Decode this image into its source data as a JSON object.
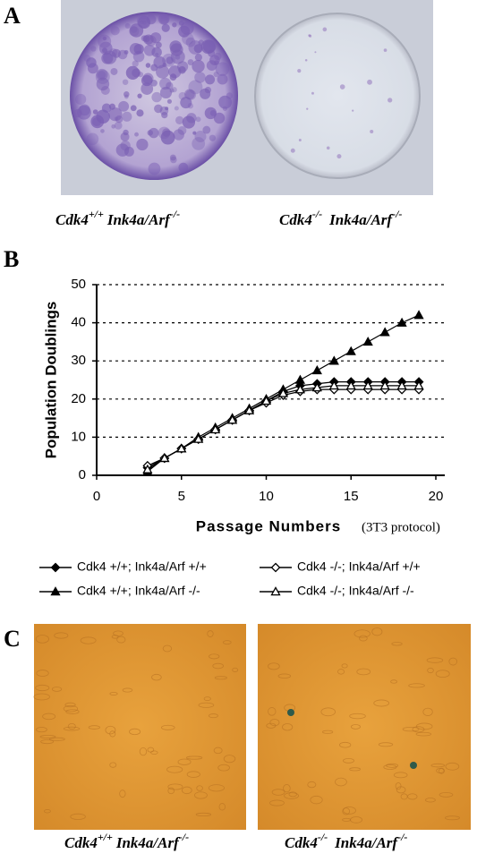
{
  "panel_a": {
    "letter": "A",
    "labels": [
      {
        "gene1": "Cdk4",
        "sup1": "+/+",
        "gene2": "Ink4a/Arf",
        "sup2": "-/-"
      },
      {
        "gene1": "Cdk4",
        "sup1": "-/-",
        "gene2": "Ink4a/Arf",
        "sup2": "-/-"
      }
    ]
  },
  "panel_b": {
    "letter": "B"
  },
  "chart_data": {
    "type": "line",
    "y_label": "Population Doublings",
    "x_label": "Passage Numbers",
    "x_note": "(3T3 protocol)",
    "x": [
      3,
      4,
      5,
      6,
      7,
      8,
      9,
      10,
      11,
      12,
      13,
      14,
      15,
      16,
      17,
      18,
      19
    ],
    "xlim": [
      0,
      20
    ],
    "xticks": [
      0,
      5,
      10,
      15,
      20
    ],
    "ylim": [
      0,
      50
    ],
    "yticks": [
      0,
      10,
      20,
      30,
      40,
      50
    ],
    "grid": true,
    "series": [
      {
        "name": "Cdk4 +/+; Ink4a/Arf +/+",
        "color": "#000000",
        "marker": "diamond-filled",
        "values": [
          2,
          4.5,
          7,
          9.5,
          12,
          14.5,
          17,
          19.5,
          22,
          23.5,
          24,
          24.5,
          24.5,
          24.5,
          24.5,
          24.5,
          24.5
        ]
      },
      {
        "name": "Cdk4 +/+; Ink4a/Arf -/-",
        "color": "#000000",
        "marker": "triangle-filled",
        "values": [
          1,
          4.5,
          7,
          10,
          12.5,
          15,
          17.5,
          20,
          22.5,
          25,
          27.5,
          30,
          32.5,
          35,
          37.5,
          40,
          42
        ]
      },
      {
        "name": "Cdk4 -/-; Ink4a/Arf +/+",
        "color": "#000000",
        "marker": "diamond-open",
        "values": [
          2.5,
          4.5,
          7,
          9.5,
          12,
          14.5,
          17,
          19,
          21,
          22,
          22.5,
          22.5,
          22.5,
          22.5,
          22.5,
          22.5,
          22.5
        ]
      },
      {
        "name": "Cdk4 -/-; Ink4a/Arf -/-",
        "color": "#000000",
        "marker": "triangle-open",
        "values": [
          1.5,
          4.5,
          7,
          9.5,
          12,
          14.5,
          17,
          19.5,
          21.5,
          22.5,
          23,
          23.5,
          23.5,
          23.5,
          23.5,
          23.5,
          23.5
        ]
      }
    ]
  },
  "panel_c": {
    "letter": "C",
    "labels": [
      {
        "gene1": "Cdk4",
        "sup1": "+/+",
        "gene2": "Ink4a/Arf",
        "sup2": "-/-"
      },
      {
        "gene1": "Cdk4",
        "sup1": "-/-",
        "gene2": "Ink4a/Arf",
        "sup2": "-/-"
      }
    ]
  }
}
